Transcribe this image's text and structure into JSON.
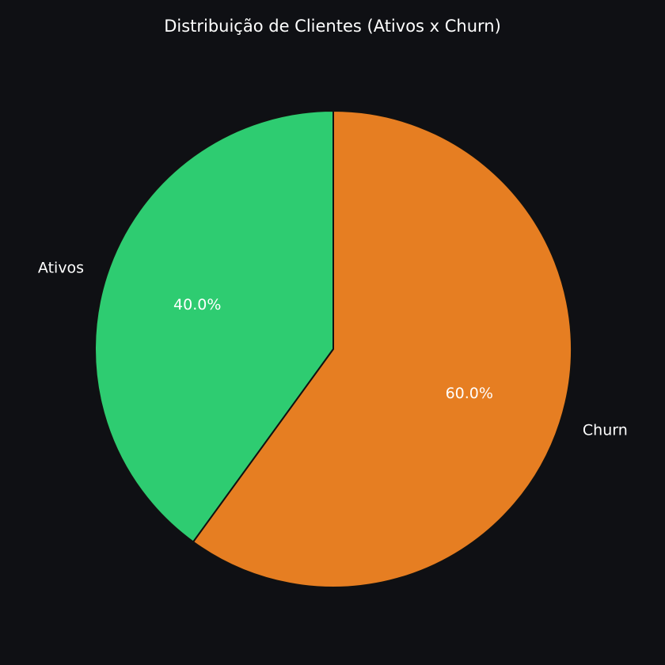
{
  "chart_data": {
    "type": "pie",
    "title": "Distribuição de Clientes (Ativos x Churn)",
    "slices": [
      {
        "label": "Ativos",
        "value": 40.0,
        "pct_label": "40.0%",
        "color": "#2ecc71"
      },
      {
        "label": "Churn",
        "value": 60.0,
        "pct_label": "60.0%",
        "color": "#e67e22"
      }
    ],
    "start_angle_deg": 90,
    "direction": "counterclockwise",
    "edge_color": "#111111",
    "background": "#0f1014",
    "legend": "none"
  }
}
